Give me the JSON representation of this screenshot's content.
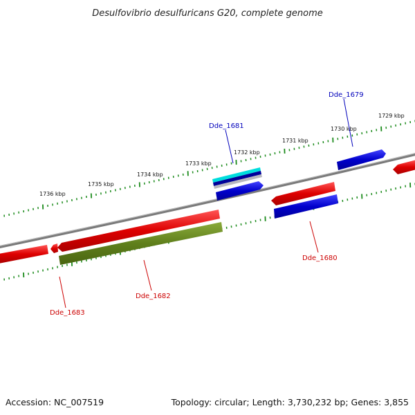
{
  "title": "Desulfovibrio desulfuricans G20, complete genome",
  "footer": {
    "accession": "Accession: NC_007519",
    "summary": "Topology: circular; Length: 3,730,232 bp; Genes: 3,855"
  },
  "colors": {
    "forward_gene": "#dd0000",
    "reverse_gene": "#0000cc",
    "cds_olive": "#5f7f1c",
    "cyan_feature": "#00dddd",
    "backbone": "#888888",
    "tick_marks": "#1a8a1a",
    "label_red": "#cc0000",
    "label_blue": "#0000bb"
  },
  "scale_labels": [
    "1729 kbp",
    "1730 kbp",
    "1731 kbp",
    "1732 kbp",
    "1733 kbp",
    "1734 kbp",
    "1735 kbp",
    "1736 kbp"
  ],
  "gene_labels": [
    {
      "name": "Dde_1679",
      "color": "blue"
    },
    {
      "name": "Dde_1680",
      "color": "red"
    },
    {
      "name": "Dde_1681",
      "color": "blue"
    },
    {
      "name": "Dde_1682",
      "color": "red"
    },
    {
      "name": "Dde_1683",
      "color": "red"
    }
  ]
}
